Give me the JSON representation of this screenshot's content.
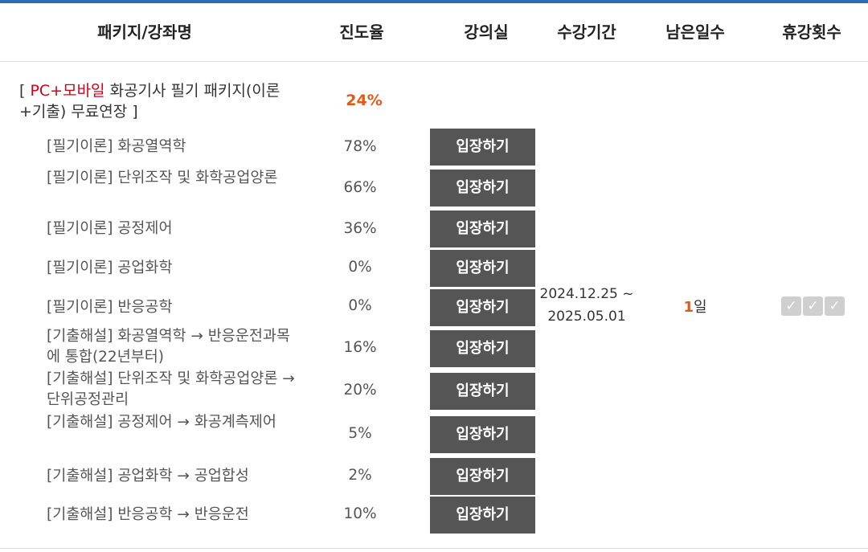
{
  "header": {
    "package_name": "패키지/강좌명",
    "progress": "진도율",
    "classroom": "강의실",
    "period": "수강기간",
    "remaining": "남은일수",
    "breaks": "휴강횟수"
  },
  "package": {
    "bracket_open": "[ ",
    "highlight": "PC+모바일",
    "title_rest": " 화공기사 필기 패키지(이론+기출) 무료연장 ]",
    "progress": "24%"
  },
  "courses": [
    {
      "name": "[필기이론] 화공열역학",
      "progress": "78%"
    },
    {
      "name": "[필기이론] 단위조작 및 화학공업양론",
      "progress": "66%"
    },
    {
      "name": "[필기이론] 공정제어",
      "progress": "36%"
    },
    {
      "name": "[필기이론] 공업화학",
      "progress": "0%"
    },
    {
      "name": "[필기이론] 반응공학",
      "progress": "0%"
    },
    {
      "name": "[기출해설] 화공열역학 → 반응운전과목에 통합(22년부터)",
      "progress": "16%"
    },
    {
      "name": "[기출해설] 단위조작 및 화학공업양론 → 단위공정관리",
      "progress": "20%"
    },
    {
      "name": "[기출해설] 공정제어 → 화공계측제어",
      "progress": "5%"
    },
    {
      "name": "[기출해설] 공업화학 → 공업합성",
      "progress": "2%"
    },
    {
      "name": "[기출해설] 반응공학 → 반응운전",
      "progress": "10%"
    }
  ],
  "enter_label": "입장하기",
  "period": {
    "start": "2024.12.25 ~",
    "end": "2025.05.01"
  },
  "remaining": {
    "number": "1",
    "unit": "일"
  },
  "breaks": {
    "check_glyph": "✓"
  },
  "colors": {
    "accent_line": "#2f6db5",
    "highlight_red": "#d0021b",
    "progress_orange": "#e05a1a",
    "button_bg": "#555555"
  }
}
